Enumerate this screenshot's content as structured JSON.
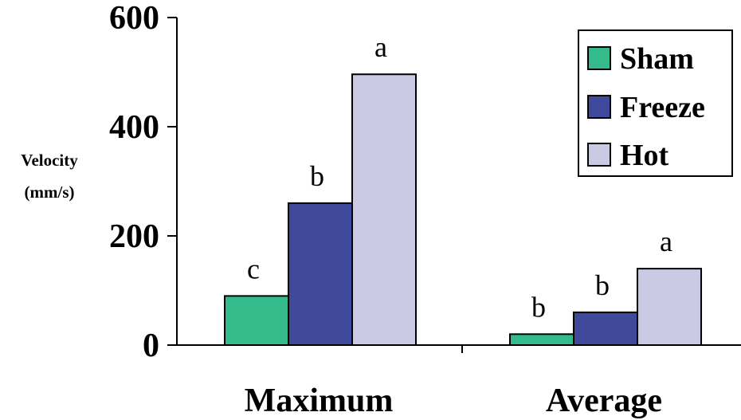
{
  "chart_data": {
    "type": "bar",
    "categories": [
      "Maximum",
      "Average"
    ],
    "series": [
      {
        "name": "Sham",
        "values": [
          90,
          20
        ],
        "color": "#33BB8C",
        "sig": [
          "c",
          "b"
        ]
      },
      {
        "name": "Freeze",
        "values": [
          260,
          60
        ],
        "color": "#3F4A9C",
        "sig": [
          "b",
          "b"
        ]
      },
      {
        "name": "Hot",
        "values": [
          496,
          140
        ],
        "color": "#CACAE4",
        "sig": [
          "a",
          "a"
        ]
      }
    ],
    "ylabel_lines": [
      "Velocity",
      "(mm/s)"
    ],
    "ylim": [
      0,
      600
    ],
    "yticks": [
      0,
      200,
      400,
      600
    ],
    "legend_position": "top-right",
    "grid": false
  }
}
